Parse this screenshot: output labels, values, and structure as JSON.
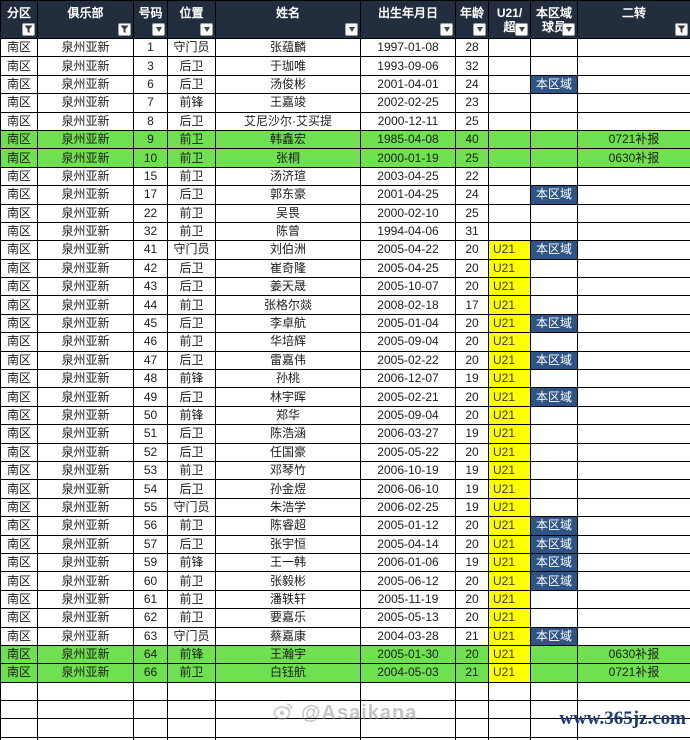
{
  "colors": {
    "header_bg": "#222e3e",
    "highlight_green": "#6fe04f",
    "u21_yellow": "#ffff00",
    "region_navy": "#2e5586",
    "url_blue": "#1c3a70"
  },
  "table": {
    "columns": [
      {
        "key": "division",
        "label": "分区",
        "label_lines": [
          "分区"
        ],
        "icon": "funnel"
      },
      {
        "key": "club",
        "label": "俱乐部",
        "label_lines": [
          "俱乐部"
        ],
        "icon": "funnel"
      },
      {
        "key": "number",
        "label": "号码",
        "label_lines": [
          "号码"
        ],
        "icon": "dropdown"
      },
      {
        "key": "position",
        "label": "位置",
        "label_lines": [
          "位置"
        ],
        "icon": "dropdown"
      },
      {
        "key": "name",
        "label": "姓名",
        "label_lines": [
          "姓名"
        ],
        "icon": "dropdown"
      },
      {
        "key": "birth",
        "label": "出生年月日",
        "label_lines": [
          "出生年月日"
        ],
        "icon": "dropdown"
      },
      {
        "key": "age",
        "label": "年龄",
        "label_lines": [
          "年龄"
        ],
        "icon": "dropdown"
      },
      {
        "key": "u21",
        "label": "U21/超",
        "label_lines": [
          "U21/",
          "超"
        ],
        "icon": "dropdown"
      },
      {
        "key": "region",
        "label": "本区域球员",
        "label_lines": [
          "本区域",
          "球员"
        ],
        "icon": "dropdown"
      },
      {
        "key": "transfer",
        "label": "二转",
        "label_lines": [
          "二转"
        ],
        "icon": "funnel"
      }
    ],
    "row_fields": [
      "division",
      "club",
      "number",
      "position",
      "name",
      "birth",
      "age",
      "u21",
      "region",
      "transfer",
      "highlight_green"
    ],
    "rows": [
      [
        "南区",
        "泉州亚新",
        "1",
        "守门员",
        "张蕴麟",
        "1997-01-08",
        "28",
        "",
        "",
        "",
        0
      ],
      [
        "南区",
        "泉州亚新",
        "3",
        "后卫",
        "于珈唯",
        "1993-09-06",
        "32",
        "",
        "",
        "",
        0
      ],
      [
        "南区",
        "泉州亚新",
        "6",
        "后卫",
        "汤俊彬",
        "2001-04-01",
        "24",
        "",
        "本区域",
        "",
        0
      ],
      [
        "南区",
        "泉州亚新",
        "7",
        "前锋",
        "王嘉竣",
        "2002-02-25",
        "23",
        "",
        "",
        "",
        0
      ],
      [
        "南区",
        "泉州亚新",
        "8",
        "后卫",
        "艾尼沙尔·艾买提",
        "2000-12-11",
        "25",
        "",
        "",
        "",
        0
      ],
      [
        "南区",
        "泉州亚新",
        "9",
        "前卫",
        "韩鑫宏",
        "1985-04-08",
        "40",
        "",
        "",
        "0721补报",
        1
      ],
      [
        "南区",
        "泉州亚新",
        "10",
        "前卫",
        "张桐",
        "2000-01-19",
        "25",
        "",
        "",
        "0630补报",
        1
      ],
      [
        "南区",
        "泉州亚新",
        "15",
        "前卫",
        "汤济瑄",
        "2003-04-25",
        "22",
        "",
        "",
        "",
        0
      ],
      [
        "南区",
        "泉州亚新",
        "17",
        "后卫",
        "郭东豪",
        "2001-04-25",
        "24",
        "",
        "本区域",
        "",
        0
      ],
      [
        "南区",
        "泉州亚新",
        "22",
        "前卫",
        "吴畏",
        "2000-02-10",
        "25",
        "",
        "",
        "",
        0
      ],
      [
        "南区",
        "泉州亚新",
        "32",
        "前卫",
        "陈曾",
        "1994-04-06",
        "31",
        "",
        "",
        "",
        0
      ],
      [
        "南区",
        "泉州亚新",
        "41",
        "守门员",
        "刘伯洲",
        "2005-04-22",
        "20",
        "U21",
        "本区域",
        "",
        0
      ],
      [
        "南区",
        "泉州亚新",
        "42",
        "后卫",
        "崔奇隆",
        "2005-04-25",
        "20",
        "U21",
        "",
        "",
        0
      ],
      [
        "南区",
        "泉州亚新",
        "43",
        "后卫",
        "姜天晟",
        "2005-10-07",
        "20",
        "U21",
        "",
        "",
        0
      ],
      [
        "南区",
        "泉州亚新",
        "44",
        "前卫",
        "张格尔燚",
        "2008-02-18",
        "17",
        "U21",
        "",
        "",
        0
      ],
      [
        "南区",
        "泉州亚新",
        "45",
        "后卫",
        "李卓航",
        "2005-01-04",
        "20",
        "U21",
        "本区域",
        "",
        0
      ],
      [
        "南区",
        "泉州亚新",
        "46",
        "前卫",
        "华培辉",
        "2005-09-04",
        "20",
        "U21",
        "",
        "",
        0
      ],
      [
        "南区",
        "泉州亚新",
        "47",
        "后卫",
        "雷嘉伟",
        "2005-02-22",
        "20",
        "U21",
        "本区域",
        "",
        0
      ],
      [
        "南区",
        "泉州亚新",
        "48",
        "前锋",
        "孙桃",
        "2006-12-07",
        "19",
        "U21",
        "",
        "",
        0
      ],
      [
        "南区",
        "泉州亚新",
        "49",
        "后卫",
        "林宇晖",
        "2005-02-21",
        "20",
        "U21",
        "本区域",
        "",
        0
      ],
      [
        "南区",
        "泉州亚新",
        "50",
        "前锋",
        "郑华",
        "2005-09-04",
        "20",
        "U21",
        "",
        "",
        0
      ],
      [
        "南区",
        "泉州亚新",
        "51",
        "后卫",
        "陈浩涵",
        "2006-03-27",
        "19",
        "U21",
        "",
        "",
        0
      ],
      [
        "南区",
        "泉州亚新",
        "52",
        "后卫",
        "任国豪",
        "2005-05-22",
        "20",
        "U21",
        "",
        "",
        0
      ],
      [
        "南区",
        "泉州亚新",
        "53",
        "前卫",
        "邓琴竹",
        "2006-10-19",
        "19",
        "U21",
        "",
        "",
        0
      ],
      [
        "南区",
        "泉州亚新",
        "54",
        "后卫",
        "孙金煜",
        "2006-06-10",
        "19",
        "U21",
        "",
        "",
        0
      ],
      [
        "南区",
        "泉州亚新",
        "55",
        "守门员",
        "朱浩学",
        "2006-02-25",
        "19",
        "U21",
        "",
        "",
        0
      ],
      [
        "南区",
        "泉州亚新",
        "56",
        "前卫",
        "陈睿超",
        "2005-01-12",
        "20",
        "U21",
        "本区域",
        "",
        0
      ],
      [
        "南区",
        "泉州亚新",
        "57",
        "后卫",
        "张宇恒",
        "2005-04-14",
        "20",
        "U21",
        "本区域",
        "",
        0
      ],
      [
        "南区",
        "泉州亚新",
        "59",
        "前锋",
        "王一韩",
        "2006-01-06",
        "19",
        "U21",
        "本区域",
        "",
        0
      ],
      [
        "南区",
        "泉州亚新",
        "60",
        "前卫",
        "张毅彬",
        "2005-06-12",
        "20",
        "U21",
        "本区域",
        "",
        0
      ],
      [
        "南区",
        "泉州亚新",
        "61",
        "前卫",
        "潘轶轩",
        "2005-11-19",
        "20",
        "U21",
        "",
        "",
        0
      ],
      [
        "南区",
        "泉州亚新",
        "62",
        "前卫",
        "要嘉乐",
        "2005-05-13",
        "20",
        "U21",
        "",
        "",
        0
      ],
      [
        "南区",
        "泉州亚新",
        "63",
        "守门员",
        "蔡嘉康",
        "2004-03-28",
        "21",
        "U21",
        "本区域",
        "",
        0
      ],
      [
        "南区",
        "泉州亚新",
        "64",
        "前锋",
        "王瀚宇",
        "2005-01-30",
        "20",
        "U21",
        "",
        "0630补报",
        1
      ],
      [
        "南区",
        "泉州亚新",
        "66",
        "前卫",
        "白钰航",
        "2004-05-03",
        "21",
        "U21",
        "",
        "0721补报",
        1
      ]
    ],
    "empty_row_count": 4,
    "u21_badge_text": "U21",
    "region_badge_text": "本区域"
  },
  "footer": {
    "watermark": "@Asaikana",
    "site_url": "www.365jz.com"
  }
}
